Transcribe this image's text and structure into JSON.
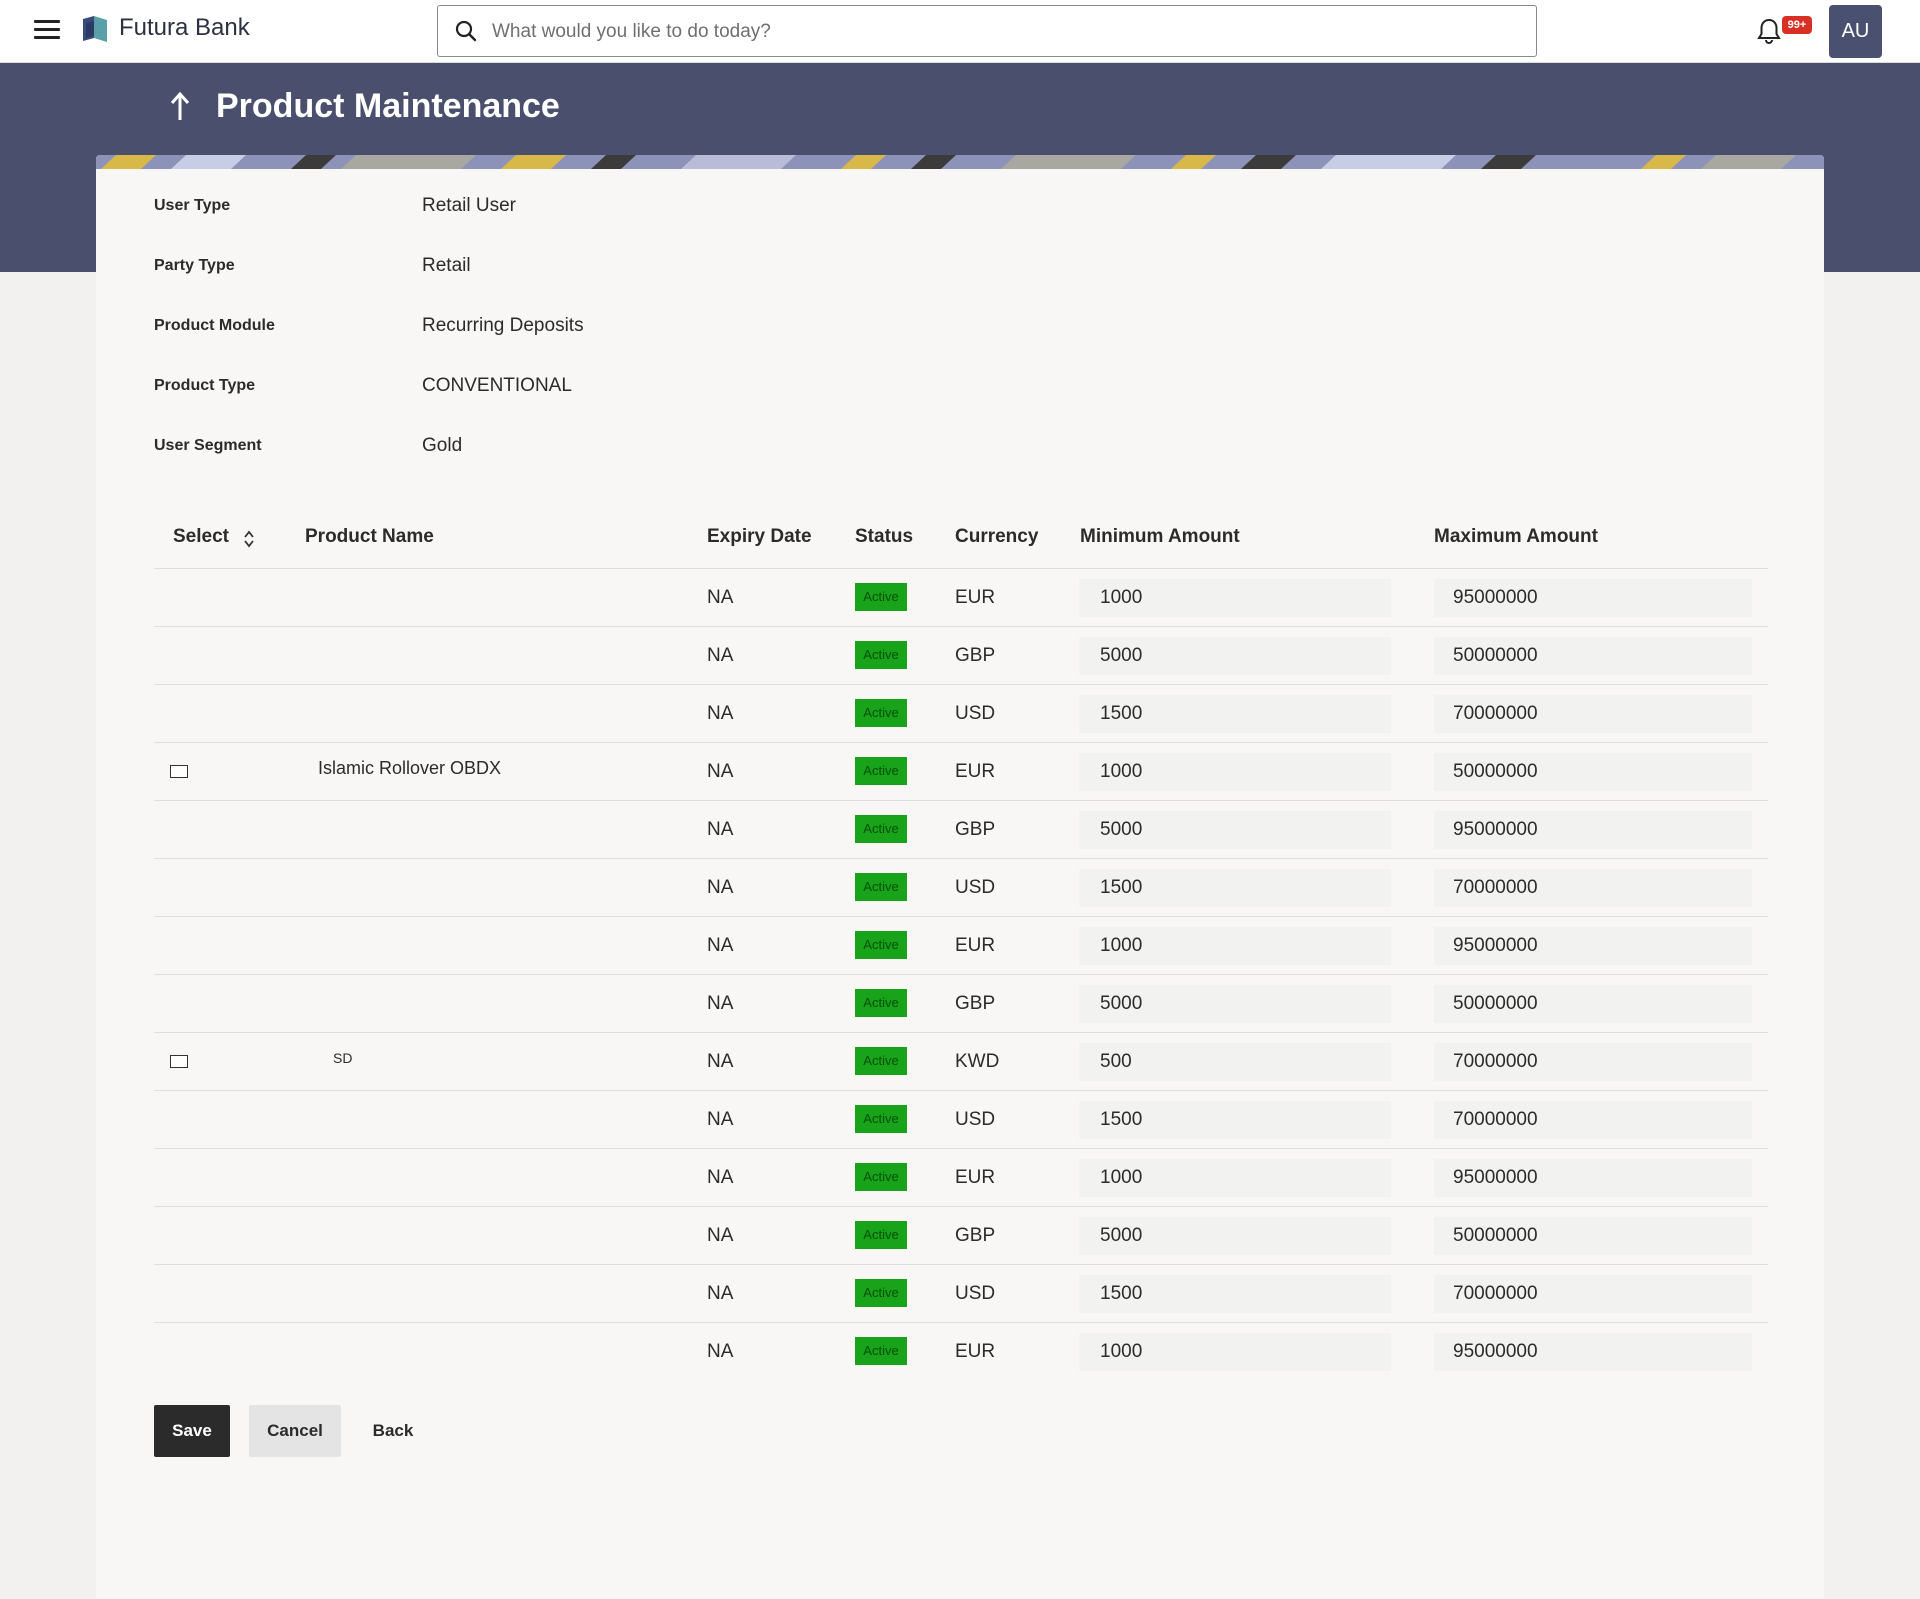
{
  "header": {
    "brand": "Futura Bank",
    "search_placeholder": "What would you like to do today?",
    "notification_count": "99+",
    "avatar_initials": "AU"
  },
  "page": {
    "title": "Product Maintenance"
  },
  "details": [
    {
      "label": "User Type",
      "value": "Retail User"
    },
    {
      "label": "Party Type",
      "value": "Retail"
    },
    {
      "label": "Product Module",
      "value": "Recurring Deposits"
    },
    {
      "label": "Product Type",
      "value": "CONVENTIONAL"
    },
    {
      "label": "User Segment",
      "value": "Gold"
    }
  ],
  "table": {
    "headers": [
      "Select",
      "Product Name",
      "Expiry Date",
      "Status",
      "Currency",
      "Minimum Amount",
      "Maximum Amount"
    ],
    "rows": [
      {
        "product": "",
        "has_checkbox": false,
        "expiry": "NA",
        "status": "Active",
        "currency": "EUR",
        "min": "1000",
        "max": "95000000"
      },
      {
        "product": "",
        "has_checkbox": false,
        "expiry": "NA",
        "status": "Active",
        "currency": "GBP",
        "min": "5000",
        "max": "50000000"
      },
      {
        "product": "",
        "has_checkbox": false,
        "expiry": "NA",
        "status": "Active",
        "currency": "USD",
        "min": "1500",
        "max": "70000000"
      },
      {
        "product": "Islamic Rollover OBDX",
        "has_checkbox": true,
        "expiry": "NA",
        "status": "Active",
        "currency": "EUR",
        "min": "1000",
        "max": "50000000"
      },
      {
        "product": "",
        "has_checkbox": false,
        "expiry": "NA",
        "status": "Active",
        "currency": "GBP",
        "min": "5000",
        "max": "95000000"
      },
      {
        "product": "",
        "has_checkbox": false,
        "expiry": "NA",
        "status": "Active",
        "currency": "USD",
        "min": "1500",
        "max": "70000000"
      },
      {
        "product": "",
        "has_checkbox": false,
        "expiry": "NA",
        "status": "Active",
        "currency": "EUR",
        "min": "1000",
        "max": "95000000"
      },
      {
        "product": "",
        "has_checkbox": false,
        "expiry": "NA",
        "status": "Active",
        "currency": "GBP",
        "min": "5000",
        "max": "50000000"
      },
      {
        "product": "SD",
        "has_checkbox": true,
        "expiry": "NA",
        "status": "Active",
        "currency": "KWD",
        "min": "500",
        "max": "70000000"
      },
      {
        "product": "",
        "has_checkbox": false,
        "expiry": "NA",
        "status": "Active",
        "currency": "USD",
        "min": "1500",
        "max": "70000000"
      },
      {
        "product": "",
        "has_checkbox": false,
        "expiry": "NA",
        "status": "Active",
        "currency": "EUR",
        "min": "1000",
        "max": "95000000"
      },
      {
        "product": "",
        "has_checkbox": false,
        "expiry": "NA",
        "status": "Active",
        "currency": "GBP",
        "min": "5000",
        "max": "50000000"
      },
      {
        "product": "",
        "has_checkbox": false,
        "expiry": "NA",
        "status": "Active",
        "currency": "USD",
        "min": "1500",
        "max": "70000000"
      },
      {
        "product": "",
        "has_checkbox": false,
        "expiry": "NA",
        "status": "Active",
        "currency": "EUR",
        "min": "1000",
        "max": "95000000"
      }
    ]
  },
  "actions": {
    "save": "Save",
    "cancel": "Cancel",
    "back": "Back"
  },
  "icons": {
    "menu": "hamburger-icon",
    "logo": "bank-logo-icon",
    "search": "search-icon",
    "notifications": "bell-icon",
    "back": "arrow-up-icon",
    "sort": "sort-icon",
    "select": "checkbox-icon"
  },
  "colors": {
    "header_band": "#4a4f6e",
    "status_active": "#18a31a",
    "primary_button": "#2b2b2b",
    "notification_badge": "#d93025"
  }
}
